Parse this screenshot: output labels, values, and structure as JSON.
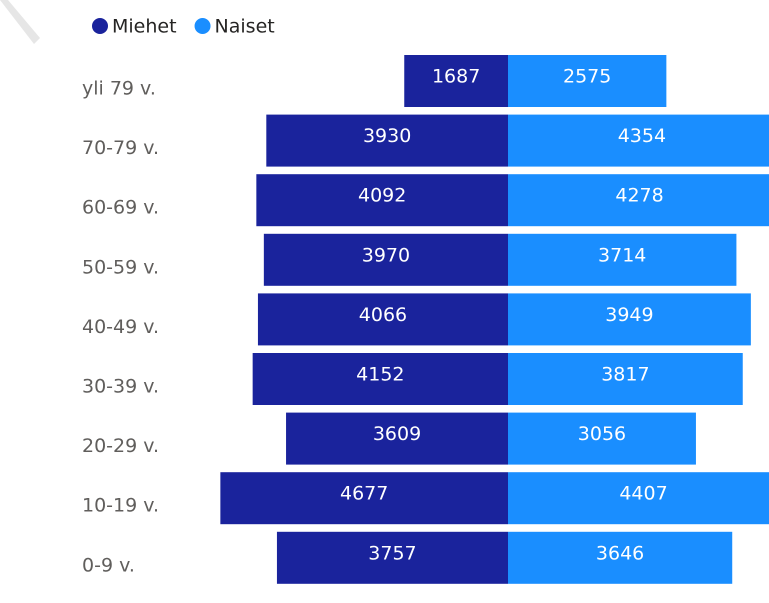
{
  "chart_data": {
    "type": "bar",
    "orientation": "horizontal",
    "layout": "diverging",
    "categories": [
      "yli 79 v.",
      "70-79 v.",
      "60-69 v.",
      "50-59 v.",
      "40-49 v.",
      "30-39 v.",
      "20-29 v.",
      "10-19 v.",
      "0-9 v."
    ],
    "series": [
      {
        "name": "Miehet",
        "color": "#1a239c",
        "values": [
          1687,
          3930,
          4092,
          3970,
          4066,
          4152,
          3609,
          4677,
          3757
        ]
      },
      {
        "name": "Naiset",
        "color": "#1a8eff",
        "values": [
          2575,
          4354,
          4278,
          3714,
          3949,
          3817,
          3056,
          4407,
          3646
        ]
      }
    ],
    "legend": "top-left"
  }
}
